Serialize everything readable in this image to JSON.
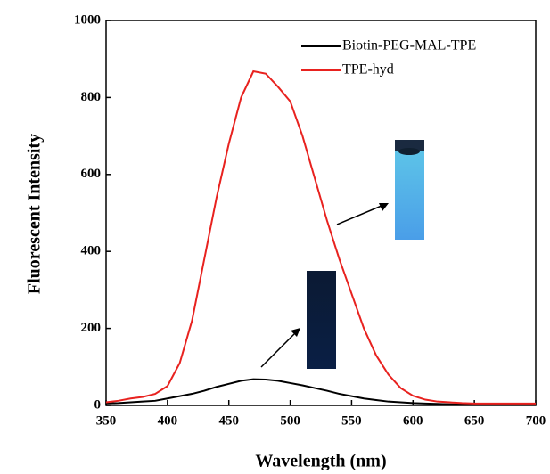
{
  "chart_data": {
    "type": "line",
    "xlabel": "Wavelength (nm)",
    "ylabel": "Fluorescent Intensity",
    "x": [
      350,
      360,
      370,
      380,
      390,
      400,
      410,
      420,
      430,
      440,
      450,
      460,
      470,
      480,
      490,
      500,
      510,
      520,
      530,
      540,
      550,
      560,
      570,
      580,
      590,
      600,
      610,
      620,
      630,
      640,
      650,
      660,
      670,
      680,
      690,
      700
    ],
    "series": [
      {
        "name": "Biotin-PEG-MAL-TPE",
        "color": "#000000",
        "values": [
          5,
          6,
          8,
          10,
          12,
          18,
          24,
          30,
          38,
          48,
          56,
          64,
          68,
          67,
          64,
          58,
          52,
          45,
          38,
          30,
          24,
          18,
          14,
          10,
          8,
          6,
          5,
          4,
          3,
          3,
          3,
          2,
          2,
          2,
          2,
          2
        ]
      },
      {
        "name": "TPE-hyd",
        "color": "#e8221f",
        "values": [
          8,
          12,
          18,
          22,
          30,
          50,
          110,
          220,
          380,
          540,
          680,
          800,
          868,
          862,
          828,
          790,
          700,
          590,
          480,
          380,
          290,
          200,
          130,
          80,
          45,
          25,
          15,
          10,
          8,
          6,
          5,
          5,
          5,
          5,
          5,
          5
        ]
      }
    ],
    "xlim": [
      350,
      700
    ],
    "xticks": [
      350,
      400,
      450,
      500,
      550,
      600,
      650,
      700
    ],
    "ylim": [
      0,
      1000
    ],
    "yticks": [
      0,
      200,
      400,
      600,
      800,
      1000
    ],
    "legend": "upper right"
  }
}
